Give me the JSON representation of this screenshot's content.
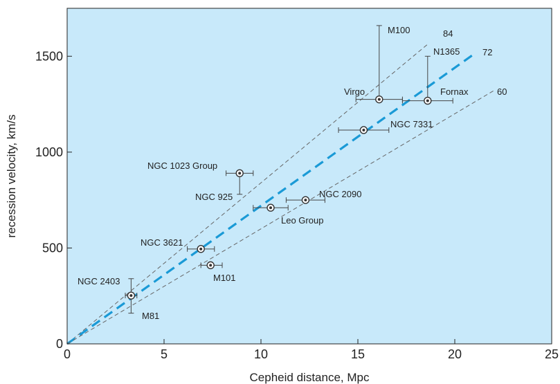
{
  "chart_data": {
    "type": "scatter",
    "xlabel": "Cepheid distance, Mpc",
    "ylabel": "recession velocity, km/s",
    "xlim": [
      0,
      25
    ],
    "ylim": [
      0,
      1750
    ],
    "x_ticks": [
      "0",
      "5",
      "10",
      "15",
      "20",
      "25"
    ],
    "y_ticks": [
      "0",
      "500",
      "1000",
      "1500"
    ],
    "grid": false,
    "colors": {
      "plot_background": "#c8e9fa",
      "fit_line": "#1a9ad6",
      "bound_lines": "#666666",
      "points": "#333333"
    },
    "points": [
      {
        "name": "NGC 2403",
        "x": 3.3,
        "y": 252,
        "xerr": [
          3.0,
          3.6
        ],
        "yerr": [
          160,
          340
        ]
      },
      {
        "name": "M81",
        "x": 3.3,
        "y": 252
      },
      {
        "name": "NGC 3621",
        "x": 6.9,
        "y": 495,
        "xerr": [
          6.2,
          7.6
        ]
      },
      {
        "name": "M101",
        "x": 7.4,
        "y": 410,
        "xerr": [
          6.9,
          8.0
        ]
      },
      {
        "name": "NGC 1023 Group",
        "x": 8.9,
        "y": 890,
        "xerr": [
          8.2,
          9.6
        ],
        "yerr": [
          780,
          890
        ]
      },
      {
        "name": "NGC 925",
        "x": 8.9,
        "y": 890
      },
      {
        "name": "Leo Group",
        "x": 10.5,
        "y": 710,
        "xerr": [
          9.6,
          11.4
        ]
      },
      {
        "name": "NGC 2090",
        "x": 12.3,
        "y": 750,
        "xerr": [
          11.3,
          13.3
        ]
      },
      {
        "name": "NGC 7331",
        "x": 15.3,
        "y": 1115,
        "xerr": [
          14.0,
          16.6
        ]
      },
      {
        "name": "Virgo",
        "x": 16.1,
        "y": 1275,
        "xerr": [
          14.9,
          17.3
        ],
        "yerr": [
          1275,
          1660
        ]
      },
      {
        "name": "M100",
        "x": 16.1,
        "y": 1275
      },
      {
        "name": "Fornax",
        "x": 18.6,
        "y": 1268,
        "xerr": [
          17.3,
          19.9
        ],
        "yerr": [
          1268,
          1500
        ]
      },
      {
        "name": "N1365",
        "x": 18.6,
        "y": 1268
      }
    ],
    "lines": [
      {
        "name": "84",
        "slope": 84,
        "x_end": 18.6,
        "style": "thin-dashed"
      },
      {
        "name": "72",
        "slope": 72,
        "x_end": 21.0,
        "style": "thick-dashed"
      },
      {
        "name": "60",
        "slope": 60,
        "x_end": 22.1,
        "style": "thin-dashed"
      }
    ]
  }
}
